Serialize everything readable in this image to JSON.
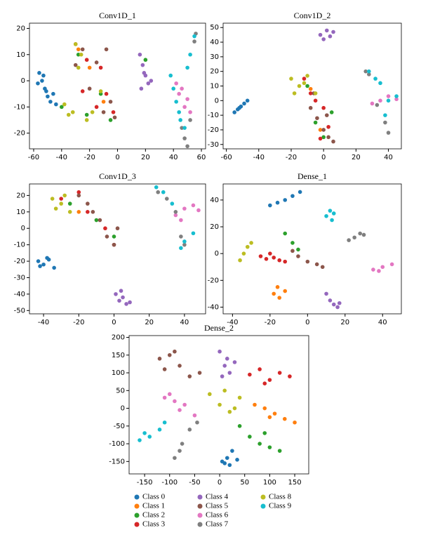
{
  "legend": {
    "entries": [
      {
        "name": "Class 0",
        "color": "#1f77b4"
      },
      {
        "name": "Class 1",
        "color": "#ff7f0e"
      },
      {
        "name": "Class 2",
        "color": "#2ca02c"
      },
      {
        "name": "Class 3",
        "color": "#d62728"
      },
      {
        "name": "Class 4",
        "color": "#9467bd"
      },
      {
        "name": "Class 5",
        "color": "#8c564b"
      },
      {
        "name": "Class 6",
        "color": "#e377c2"
      },
      {
        "name": "Class 7",
        "color": "#7f7f7f"
      },
      {
        "name": "Class 8",
        "color": "#bcbd22"
      },
      {
        "name": "Class 9",
        "color": "#17becf"
      }
    ]
  },
  "chart_data": [
    {
      "type": "scatter",
      "title": "Conv1D_1",
      "xlim": [
        -63,
        63
      ],
      "ylim": [
        -26,
        22
      ],
      "xticks": [
        -60,
        -40,
        -20,
        0,
        20,
        40,
        60
      ],
      "yticks": [
        -20,
        -10,
        0,
        10,
        20
      ],
      "series": [
        {
          "x": [
            -56,
            -54,
            -52,
            -50,
            -48,
            -46,
            -44,
            -53,
            -51,
            -57
          ],
          "y": [
            3,
            0,
            -3,
            -6,
            -8,
            -5,
            -9,
            2,
            -4,
            -1
          ]
        },
        {
          "x": [
            -28,
            -10,
            -20
          ],
          "y": [
            12,
            -8,
            5
          ]
        },
        {
          "x": [
            -40,
            -28,
            -12,
            -5,
            -22,
            20
          ],
          "y": [
            -10,
            10,
            -5,
            -15,
            -13,
            8
          ]
        },
        {
          "x": [
            -30,
            -22,
            -15,
            -8,
            -3,
            -25,
            -12
          ],
          "y": [
            14,
            8,
            -10,
            -5,
            -12,
            -4,
            5
          ]
        },
        {
          "x": [
            16,
            18,
            20,
            22,
            19,
            24,
            17
          ],
          "y": [
            10,
            6,
            2,
            -1,
            3,
            0,
            -3
          ]
        },
        {
          "x": [
            -25,
            -20,
            -10,
            -5,
            -2,
            -15,
            -8,
            -30
          ],
          "y": [
            12,
            -3,
            -12,
            -8,
            -14,
            7,
            12,
            6
          ]
        },
        {
          "x": [
            44,
            46,
            48,
            50,
            52,
            42
          ],
          "y": [
            -5,
            -3,
            -10,
            -7,
            -12,
            -1
          ]
        },
        {
          "x": [
            46,
            48,
            50,
            55,
            56,
            52
          ],
          "y": [
            -18,
            -22,
            -25,
            15,
            18,
            -15
          ]
        },
        {
          "x": [
            -38,
            -32,
            -30,
            -26,
            -18,
            -12,
            -22,
            -28,
            -35
          ],
          "y": [
            -9,
            -12,
            14,
            10,
            -12,
            -4,
            -15,
            5,
            -13
          ]
        },
        {
          "x": [
            40,
            42,
            45,
            48,
            52,
            55,
            50,
            44,
            38
          ],
          "y": [
            -3,
            -8,
            -15,
            -18,
            10,
            17,
            5,
            -12,
            2
          ]
        }
      ]
    },
    {
      "type": "scatter",
      "title": "Conv1D_2",
      "xlim": [
        -62,
        48
      ],
      "ylim": [
        -33,
        53
      ],
      "xticks": [
        -60,
        -40,
        -20,
        0,
        20,
        40
      ],
      "yticks": [
        -30,
        -20,
        -10,
        0,
        10,
        20,
        30,
        40,
        50
      ],
      "series": [
        {
          "x": [
            -55,
            -53,
            -51,
            -49,
            -47,
            -52
          ],
          "y": [
            -8,
            -6,
            -4,
            -2,
            0,
            -5
          ]
        },
        {
          "x": [
            -8,
            -2
          ],
          "y": [
            8,
            -20
          ]
        },
        {
          "x": [
            -10,
            -5,
            0,
            5
          ],
          "y": [
            10,
            -15,
            -25,
            -8
          ]
        },
        {
          "x": [
            -12,
            -5,
            0,
            3,
            -2,
            -8
          ],
          "y": [
            15,
            0,
            -5,
            -18,
            -26,
            5
          ]
        },
        {
          "x": [
            -2,
            0,
            2,
            4,
            6
          ],
          "y": [
            45,
            42,
            48,
            44,
            47
          ]
        },
        {
          "x": [
            -8,
            -4,
            0,
            3,
            6,
            -6,
            2
          ],
          "y": [
            -5,
            -12,
            -20,
            -25,
            -28,
            5,
            -10
          ]
        },
        {
          "x": [
            30,
            35,
            40,
            45
          ],
          "y": [
            -2,
            0,
            3,
            1
          ]
        },
        {
          "x": [
            28,
            33,
            38,
            40,
            26
          ],
          "y": [
            18,
            -3,
            -15,
            -22,
            20
          ]
        },
        {
          "x": [
            -20,
            -15,
            -10,
            -5,
            -18,
            -12
          ],
          "y": [
            15,
            10,
            17,
            5,
            5,
            12
          ]
        },
        {
          "x": [
            28,
            32,
            35,
            40,
            45,
            38
          ],
          "y": [
            20,
            15,
            12,
            0,
            3,
            -10
          ]
        }
      ]
    },
    {
      "type": "scatter",
      "title": "Conv1D_3",
      "xlim": [
        -48,
        52
      ],
      "ylim": [
        -52,
        27
      ],
      "xticks": [
        -40,
        -20,
        0,
        20,
        40
      ],
      "yticks": [
        -50,
        -40,
        -30,
        -20,
        -10,
        0,
        10,
        20
      ],
      "series": [
        {
          "x": [
            -43,
            -40,
            -37,
            -34,
            -42,
            -38
          ],
          "y": [
            -20,
            -22,
            -19,
            -24,
            -23,
            -18
          ]
        },
        {
          "x": [
            -20
          ],
          "y": [
            10
          ]
        },
        {
          "x": [
            -25,
            -10,
            0
          ],
          "y": [
            15,
            5,
            -5
          ]
        },
        {
          "x": [
            -30,
            -20,
            -15,
            -5,
            0
          ],
          "y": [
            18,
            22,
            10,
            0,
            -10
          ]
        },
        {
          "x": [
            1,
            3,
            5,
            7,
            9,
            4
          ],
          "y": [
            -40,
            -44,
            -42,
            -46,
            -45,
            -38
          ]
        },
        {
          "x": [
            -20,
            -12,
            -8,
            -4,
            0,
            2,
            -15
          ],
          "y": [
            20,
            10,
            5,
            -5,
            -10,
            0,
            15
          ]
        },
        {
          "x": [
            35,
            40,
            45,
            48,
            38
          ],
          "y": [
            8,
            12,
            14,
            11,
            5
          ]
        },
        {
          "x": [
            25,
            30,
            35,
            38,
            40
          ],
          "y": [
            22,
            18,
            10,
            -5,
            -10
          ]
        },
        {
          "x": [
            -35,
            -30,
            -25,
            -33,
            -28
          ],
          "y": [
            18,
            15,
            10,
            12,
            20
          ]
        },
        {
          "x": [
            24,
            28,
            33,
            40,
            45,
            38
          ],
          "y": [
            25,
            22,
            15,
            -8,
            -3,
            -12
          ]
        }
      ]
    },
    {
      "type": "scatter",
      "title": "Dense_1",
      "xlim": [
        -45,
        50
      ],
      "ylim": [
        -45,
        52
      ],
      "xticks": [
        -40,
        -20,
        0,
        20,
        40
      ],
      "yticks": [
        -40,
        -20,
        0,
        20,
        40
      ],
      "series": [
        {
          "x": [
            -20,
            -16,
            -12,
            -8,
            -4
          ],
          "y": [
            36,
            38,
            40,
            43,
            46
          ]
        },
        {
          "x": [
            -18,
            -15,
            -12,
            -16
          ],
          "y": [
            -30,
            -33,
            -28,
            -25
          ]
        },
        {
          "x": [
            -12,
            -8,
            -5
          ],
          "y": [
            15,
            8,
            3
          ]
        },
        {
          "x": [
            -25,
            -22,
            -18,
            -15,
            -12,
            -20
          ],
          "y": [
            -2,
            -4,
            -3,
            -5,
            -6,
            0
          ]
        },
        {
          "x": [
            10,
            12,
            14,
            16,
            17
          ],
          "y": [
            -30,
            -35,
            -38,
            -40,
            -37
          ]
        },
        {
          "x": [
            -5,
            0,
            5,
            8,
            -8
          ],
          "y": [
            -2,
            -6,
            -8,
            -10,
            2
          ]
        },
        {
          "x": [
            35,
            40,
            45,
            38
          ],
          "y": [
            -12,
            -10,
            -8,
            -13
          ]
        },
        {
          "x": [
            22,
            25,
            28,
            30
          ],
          "y": [
            10,
            12,
            15,
            14
          ]
        },
        {
          "x": [
            -36,
            -34,
            -32,
            -30
          ],
          "y": [
            -5,
            0,
            5,
            8
          ]
        },
        {
          "x": [
            10,
            12,
            14,
            13
          ],
          "y": [
            28,
            32,
            30,
            25
          ]
        }
      ]
    },
    {
      "type": "scatter",
      "title": "Dense_2",
      "xlim": [
        -181,
        178
      ],
      "ylim": [
        -185,
        205
      ],
      "xticks": [
        -150,
        -100,
        -50,
        0,
        50,
        100,
        150
      ],
      "yticks": [
        -150,
        -100,
        -50,
        0,
        50,
        100,
        150,
        200
      ],
      "series": [
        {
          "x": [
            5,
            15,
            25,
            35,
            20,
            10
          ],
          "y": [
            -150,
            -140,
            -120,
            -145,
            -160,
            -155
          ]
        },
        {
          "x": [
            70,
            90,
            110,
            130,
            150,
            100
          ],
          "y": [
            10,
            0,
            -15,
            -30,
            -40,
            -25
          ]
        },
        {
          "x": [
            40,
            60,
            80,
            100,
            120,
            90
          ],
          "y": [
            -50,
            -80,
            -100,
            -110,
            -120,
            -70
          ]
        },
        {
          "x": [
            60,
            80,
            100,
            120,
            140,
            90
          ],
          "y": [
            95,
            110,
            80,
            100,
            90,
            70
          ]
        },
        {
          "x": [
            0,
            10,
            20,
            30,
            5,
            15
          ],
          "y": [
            160,
            120,
            100,
            130,
            90,
            140
          ]
        },
        {
          "x": [
            -120,
            -100,
            -80,
            -60,
            -40,
            -90,
            -110
          ],
          "y": [
            140,
            150,
            120,
            90,
            100,
            160,
            110
          ]
        },
        {
          "x": [
            -110,
            -90,
            -70,
            -50,
            -100,
            -80
          ],
          "y": [
            30,
            20,
            10,
            -20,
            40,
            -5
          ]
        },
        {
          "x": [
            -90,
            -75,
            -60,
            -45,
            -80
          ],
          "y": [
            -140,
            -100,
            -60,
            -40,
            -120
          ]
        },
        {
          "x": [
            -20,
            0,
            20,
            40,
            10,
            30
          ],
          "y": [
            40,
            10,
            -10,
            30,
            50,
            0
          ]
        },
        {
          "x": [
            -160,
            -140,
            -120,
            -110,
            -150
          ],
          "y": [
            -90,
            -80,
            -60,
            -40,
            -70
          ]
        }
      ]
    }
  ]
}
